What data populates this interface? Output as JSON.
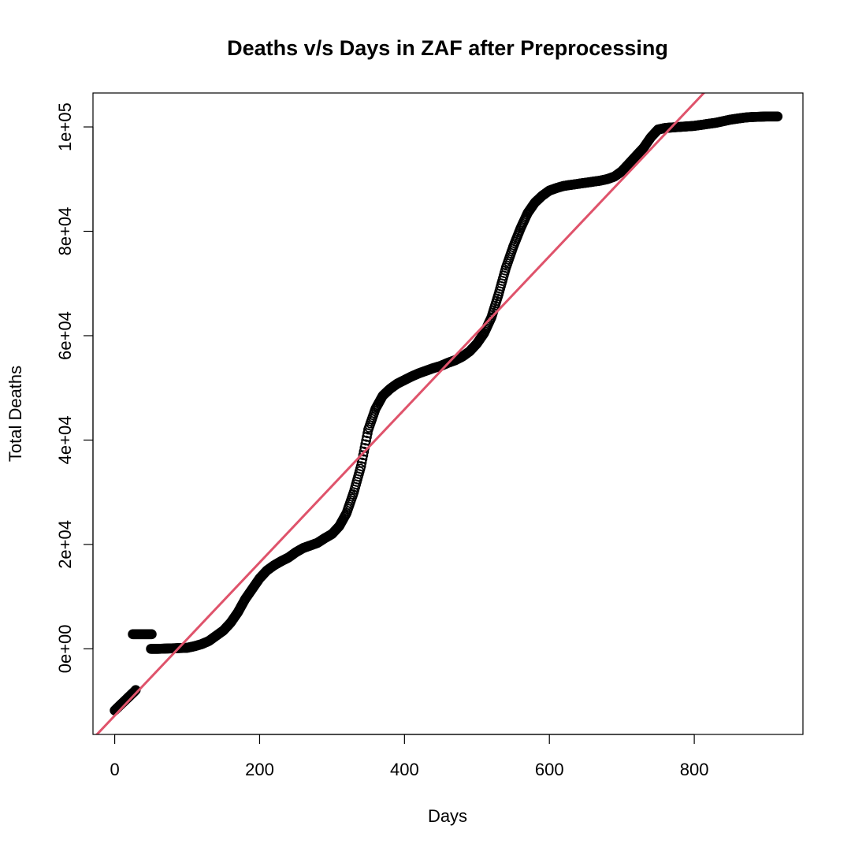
{
  "chart_data": {
    "type": "scatter",
    "title": "Deaths v/s Days in ZAF after Preprocessing",
    "xlabel": "Days",
    "ylabel": "Total Deaths",
    "xlim": [
      -30,
      950
    ],
    "ylim": [
      -16400,
      106500
    ],
    "xticks": [
      0,
      200,
      400,
      600,
      800
    ],
    "xtick_labels": [
      "0",
      "200",
      "400",
      "600",
      "800"
    ],
    "yticks": [
      0,
      20000,
      40000,
      60000,
      80000,
      100000
    ],
    "ytick_labels": [
      "0e+00",
      "2e+04",
      "4e+04",
      "6e+04",
      "8e+04",
      "1e+05"
    ],
    "grid": false,
    "legend": "none",
    "point_color": "#000000",
    "line_color": "#DF536B",
    "series": [
      {
        "marker": "open-circle",
        "points": [
          [
            0,
            -11800
          ],
          [
            3,
            -11400
          ],
          [
            6,
            -11000
          ],
          [
            9,
            -10600
          ],
          [
            12,
            -10200
          ],
          [
            15,
            -9800
          ],
          [
            18,
            -9400
          ],
          [
            21,
            -9000
          ],
          [
            24,
            -8600
          ],
          [
            27,
            -8200
          ],
          [
            29,
            -7900
          ],
          [
            25,
            2800
          ],
          [
            28,
            2800
          ],
          [
            31,
            2800
          ],
          [
            34,
            2800
          ],
          [
            37,
            2800
          ],
          [
            40,
            2800
          ],
          [
            43,
            2800
          ],
          [
            46,
            2800
          ],
          [
            49,
            2800
          ],
          [
            51,
            2800
          ],
          [
            50,
            0
          ],
          [
            60,
            0
          ],
          [
            70,
            50
          ],
          [
            80,
            100
          ],
          [
            90,
            150
          ],
          [
            100,
            200
          ],
          [
            110,
            500
          ],
          [
            120,
            900
          ],
          [
            130,
            1500
          ],
          [
            140,
            2500
          ],
          [
            150,
            3500
          ],
          [
            160,
            5000
          ],
          [
            170,
            7000
          ],
          [
            180,
            9500
          ],
          [
            190,
            11500
          ],
          [
            200,
            13500
          ],
          [
            210,
            15000
          ],
          [
            220,
            16000
          ],
          [
            230,
            16800
          ],
          [
            240,
            17500
          ],
          [
            250,
            18500
          ],
          [
            260,
            19300
          ],
          [
            270,
            19800
          ],
          [
            280,
            20300
          ],
          [
            290,
            21200
          ],
          [
            300,
            22000
          ],
          [
            310,
            23500
          ],
          [
            320,
            26000
          ],
          [
            330,
            30000
          ],
          [
            340,
            35000
          ],
          [
            350,
            42000
          ],
          [
            360,
            46000
          ],
          [
            370,
            48500
          ],
          [
            380,
            49800
          ],
          [
            390,
            50800
          ],
          [
            400,
            51500
          ],
          [
            410,
            52200
          ],
          [
            420,
            52800
          ],
          [
            430,
            53300
          ],
          [
            440,
            53800
          ],
          [
            450,
            54200
          ],
          [
            460,
            54800
          ],
          [
            470,
            55300
          ],
          [
            480,
            56000
          ],
          [
            490,
            57000
          ],
          [
            500,
            58500
          ],
          [
            510,
            60500
          ],
          [
            520,
            63500
          ],
          [
            530,
            68000
          ],
          [
            540,
            73000
          ],
          [
            550,
            77000
          ],
          [
            560,
            80500
          ],
          [
            570,
            83500
          ],
          [
            580,
            85500
          ],
          [
            590,
            86800
          ],
          [
            600,
            87800
          ],
          [
            610,
            88300
          ],
          [
            620,
            88700
          ],
          [
            630,
            88900
          ],
          [
            640,
            89100
          ],
          [
            650,
            89300
          ],
          [
            660,
            89500
          ],
          [
            670,
            89700
          ],
          [
            680,
            90000
          ],
          [
            690,
            90500
          ],
          [
            700,
            91500
          ],
          [
            710,
            93000
          ],
          [
            720,
            94500
          ],
          [
            730,
            96000
          ],
          [
            740,
            98000
          ],
          [
            750,
            99500
          ],
          [
            760,
            99800
          ],
          [
            770,
            99900
          ],
          [
            780,
            100000
          ],
          [
            790,
            100100
          ],
          [
            800,
            100200
          ],
          [
            810,
            100400
          ],
          [
            820,
            100600
          ],
          [
            830,
            100800
          ],
          [
            840,
            101100
          ],
          [
            850,
            101400
          ],
          [
            860,
            101600
          ],
          [
            870,
            101800
          ],
          [
            880,
            101900
          ],
          [
            890,
            101950
          ],
          [
            900,
            102000
          ],
          [
            910,
            102000
          ],
          [
            915,
            102000
          ]
        ]
      }
    ],
    "regression_line": {
      "intercept": -12800,
      "slope": 146.7
    }
  }
}
